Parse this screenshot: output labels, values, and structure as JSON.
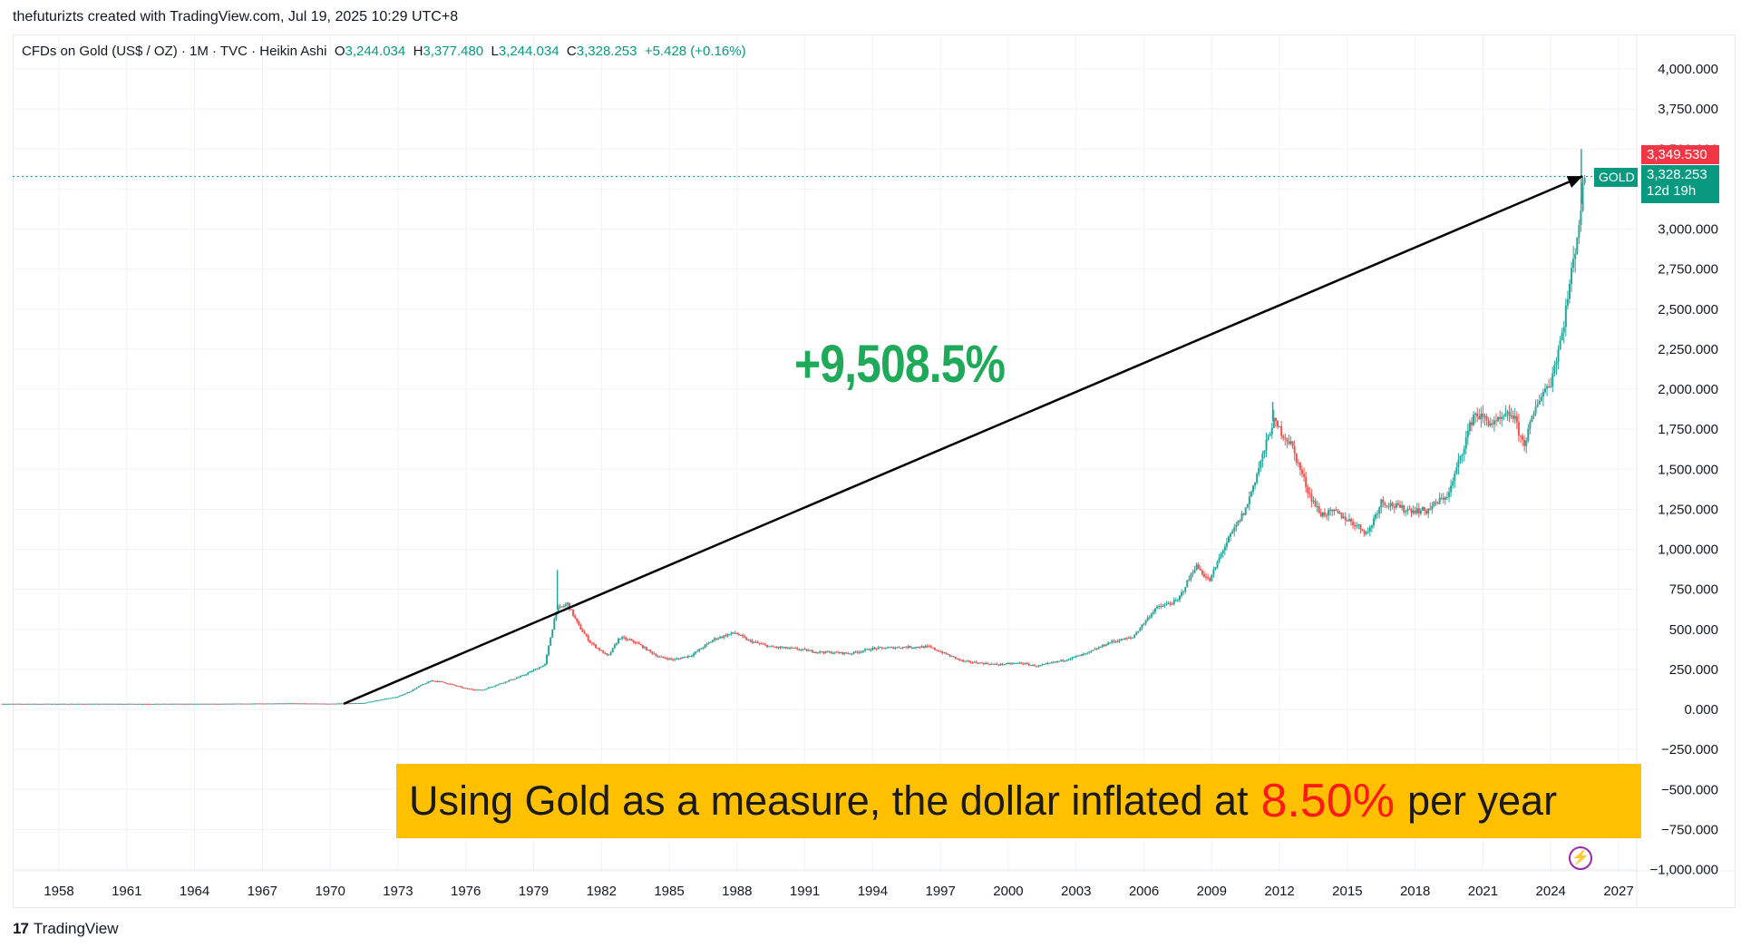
{
  "header": {
    "credit": "thefuturizts created with TradingView.com, Jul 19, 2025 10:29 UTC+8"
  },
  "legend": {
    "symbol": "CFDs on Gold (US$ / OZ) · 1M · TVC · Heikin Ashi",
    "open_key": "O",
    "open": "3,244.034",
    "high_key": "H",
    "high": "3,377.480",
    "low_key": "L",
    "low": "3,244.034",
    "close_key": "C",
    "close": "3,328.253",
    "change": "+5.428 (+0.16%)"
  },
  "price_tags": {
    "high_value": "3,349.530",
    "symbol": "GOLD",
    "last_price": "3,328.253",
    "countdown": "12d 19h"
  },
  "annotation": {
    "gain": "+9,508.5%"
  },
  "banner": {
    "pre": "Using Gold as a measure, the dollar inflated at",
    "rate": "8.50%",
    "post": "per year"
  },
  "footer": {
    "logo_mark": "17",
    "logo_name": "TradingView"
  },
  "colors": {
    "up": "#26a69a",
    "down": "#ef5350",
    "gain_text": "#1faa59",
    "banner_bg": "#ffc000",
    "banner_rate": "#ff1a1a"
  },
  "chart_data": {
    "type": "line",
    "title": "CFDs on Gold (US$ / OZ) · 1M · TVC · Heikin Ashi",
    "xlabel": "",
    "ylabel": "",
    "xlim": [
      1955.5,
      2028
    ],
    "ylim": [
      -1000,
      4000
    ],
    "x_ticks": [
      "1958",
      "1961",
      "1964",
      "1967",
      "1970",
      "1973",
      "1976",
      "1979",
      "1982",
      "1985",
      "1988",
      "1991",
      "1994",
      "1997",
      "2000",
      "2003",
      "2006",
      "2009",
      "2012",
      "2015",
      "2018",
      "2021",
      "2024",
      "2027"
    ],
    "y_ticks": [
      "4,000.000",
      "3,750.000",
      "3,500.000",
      "3,250.000",
      "3,000.000",
      "2,750.000",
      "2,500.000",
      "2,250.000",
      "2,000.000",
      "1,750.000",
      "1,500.000",
      "1,250.000",
      "1,000.000",
      "750.000",
      "500.000",
      "250.000",
      "0.000",
      "−250.000",
      "−500.000",
      "−750.000",
      "−1,000.000"
    ],
    "series": [
      {
        "x": [
          1955.5,
          1960,
          1965,
          1968,
          1970,
          1971.5,
          1972,
          1973,
          1973.5,
          1974,
          1974.5,
          1975,
          1976,
          1976.7,
          1977.5,
          1978.5,
          1979.5,
          1980.0,
          1980.5,
          1981,
          1981.5,
          1982.3,
          1982.8,
          1983.5,
          1984.5,
          1985.2,
          1986,
          1987,
          1987.9,
          1988.5,
          1989.5,
          1990.5,
          1991.5,
          1993,
          1994,
          1995.5,
          1996.5,
          1998,
          1999.5,
          2000.5,
          2001.3,
          2002.5,
          2003.5,
          2004.5,
          2005.5,
          2006.5,
          2007.5,
          2008.3,
          2008.9,
          2009.5,
          2010.5,
          2011.4,
          2011.7,
          2012.5,
          2013.3,
          2013.8,
          2014.5,
          2015.3,
          2015.9,
          2016.5,
          2017.5,
          2018.5,
          2019.5,
          2020.6,
          2021.5,
          2022.3,
          2022.8,
          2023.5,
          2024,
          2024.5,
          2025.0,
          2025.3,
          2025.5
        ],
        "y": [
          35,
          35,
          35,
          38,
          36,
          40,
          55,
          80,
          110,
          150,
          180,
          170,
          130,
          120,
          160,
          210,
          280,
          620,
          660,
          520,
          420,
          330,
          450,
          420,
          330,
          310,
          340,
          440,
          480,
          430,
          390,
          380,
          360,
          350,
          380,
          390,
          390,
          300,
          280,
          290,
          270,
          310,
          350,
          420,
          450,
          630,
          680,
          900,
          800,
          1000,
          1250,
          1650,
          1800,
          1660,
          1350,
          1220,
          1230,
          1160,
          1100,
          1300,
          1250,
          1240,
          1350,
          1850,
          1780,
          1850,
          1650,
          1950,
          2050,
          2350,
          2800,
          3100,
          3330
        ]
      }
    ],
    "annotations": [
      {
        "text": "+9,508.5%",
        "from": [
          1970.6,
          35
        ],
        "to": [
          2025.4,
          3330
        ]
      }
    ],
    "last_price": 3328.253,
    "grid": true,
    "legend": "top-left"
  }
}
